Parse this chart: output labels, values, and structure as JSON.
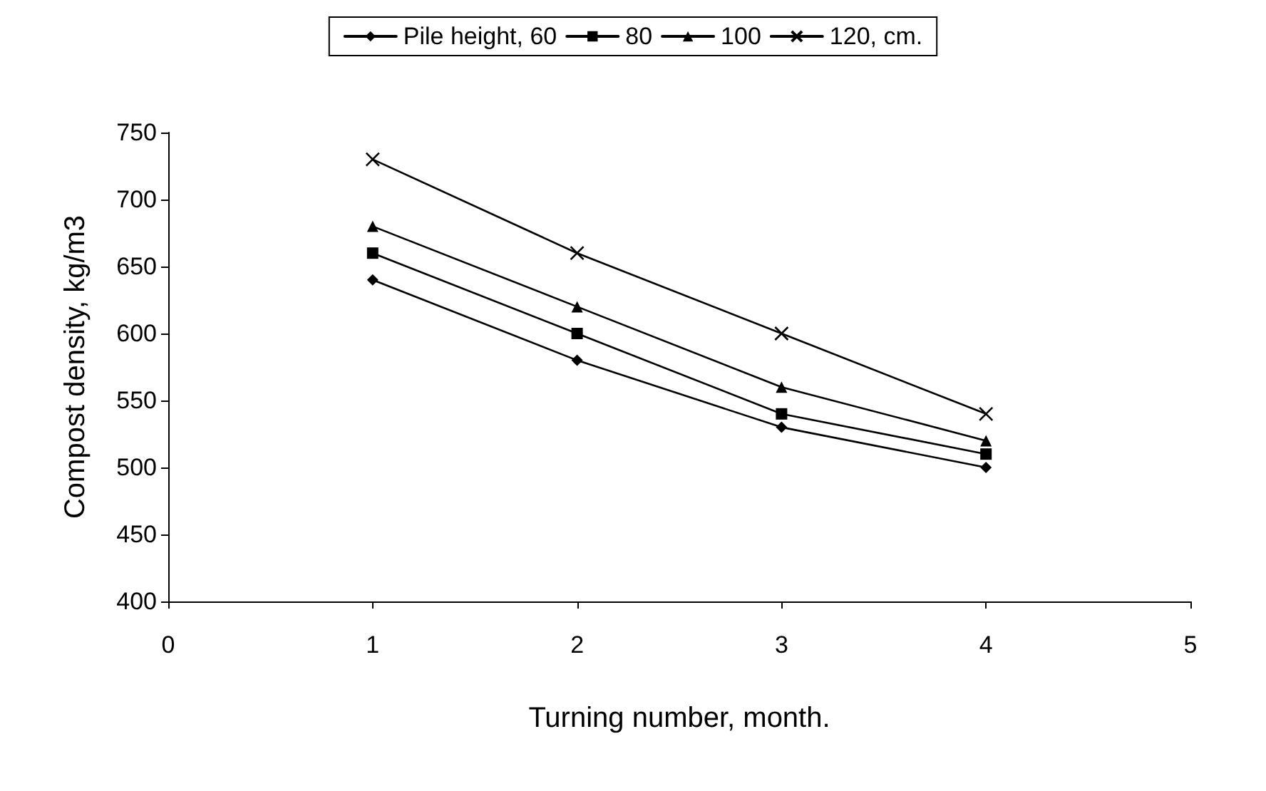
{
  "chart_data": {
    "type": "line",
    "xlabel": "Turning number, month.",
    "ylabel": "Compost density, kg/m3",
    "x": [
      1,
      2,
      3,
      4
    ],
    "series": [
      {
        "name": "Pile height, 60",
        "color": "#000000",
        "marker": "diamond",
        "values": [
          640,
          580,
          530,
          500
        ]
      },
      {
        "name": "80",
        "color": "#000000",
        "marker": "square",
        "values": [
          660,
          600,
          540,
          510
        ]
      },
      {
        "name": "100",
        "color": "#000000",
        "marker": "triangle",
        "values": [
          680,
          620,
          560,
          520
        ]
      },
      {
        "name": "120, cm.",
        "color": "#000000",
        "marker": "cross",
        "values": [
          730,
          660,
          600,
          540
        ]
      }
    ],
    "xlim": [
      0,
      5
    ],
    "xticks": [
      0,
      1,
      2,
      3,
      4,
      5
    ],
    "ylim": [
      400,
      750
    ],
    "yticks": [
      400,
      450,
      500,
      550,
      600,
      650,
      700,
      750
    ],
    "grid": false,
    "legend": "top",
    "line_style": "solid"
  }
}
